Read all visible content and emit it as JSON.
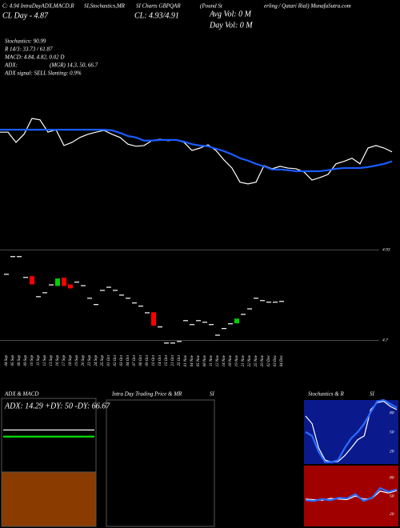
{
  "header": {
    "line1": [
      "C: 4.94 IntraDayADX,MACD,R",
      "SI,Stochastics,MR",
      "SI Charts GBPQAR",
      "(Pound St",
      "erling / Qatari Rial) MunafaSutra.com"
    ],
    "close_day": "CL Day - 4.87",
    "close": "CL: 4.93/4.91",
    "avg_vol": "Avg Vol: 0  M",
    "day_vol": "Day Vol: 0  M",
    "stats": [
      "Stochastics: 90.99",
      "R 14/3: 33.73 / 61.87",
      "MACD: 4.84, 4.82, 0.02  D",
      "ADX:",
      "(MGR) 14.3, 50, 66.7",
      "ADX  signal: SELL Slanting: 0.9%"
    ]
  },
  "intraday": {
    "title": "Intra Day Trading Price & MR",
    "subtitle": "SI"
  },
  "chart_data": [
    {
      "type": "line",
      "ylim": [
        4.7,
        4.95
      ],
      "series": [
        {
          "color": "#ffffff",
          "values": [
            4.87,
            4.87,
            4.841,
            4.864,
            4.909,
            4.905,
            4.87,
            4.877,
            4.832,
            4.841,
            4.855,
            4.864,
            4.87,
            4.875,
            4.864,
            4.855,
            4.836,
            4.83,
            4.832,
            4.846,
            4.85,
            4.846,
            4.848,
            4.841,
            4.818,
            4.825,
            4.834,
            4.818,
            4.791,
            4.768,
            4.728,
            4.723,
            4.728,
            4.775,
            4.766,
            4.773,
            4.768,
            4.766,
            4.757,
            4.734,
            4.741,
            4.75,
            4.78,
            4.787,
            4.796,
            4.78,
            4.825,
            4.832,
            4.825,
            4.814
          ]
        },
        {
          "color": "#1a5cff",
          "values": [
            4.877,
            4.877,
            4.877,
            4.877,
            4.877,
            4.877,
            4.877,
            4.877,
            4.877,
            4.877,
            4.877,
            4.877,
            4.877,
            4.877,
            4.875,
            4.868,
            4.859,
            4.855,
            4.846,
            4.846,
            4.848,
            4.848,
            4.848,
            4.843,
            4.836,
            4.832,
            4.83,
            4.823,
            4.816,
            4.807,
            4.796,
            4.789,
            4.78,
            4.773,
            4.764,
            4.764,
            4.762,
            4.759,
            4.759,
            4.759,
            4.759,
            4.762,
            4.766,
            4.768,
            4.768,
            4.768,
            4.771,
            4.775,
            4.78,
            4.787
          ]
        }
      ]
    },
    {
      "type": "candlestick",
      "ylim": [
        4.67,
        4.955
      ],
      "yticks": [
        4.93,
        4.7
      ],
      "grid": true,
      "up_color": "#00d000",
      "down_color": "#ff0000",
      "flat_color": "#ffffff",
      "categories": [
        "04 Sep",
        "05 Sep",
        "06 Sep",
        "09 Sep",
        "10 Sep",
        "11 Sep",
        "12 Sep",
        "13 Sep",
        "16 Sep",
        "17 Sep",
        "18 Sep",
        "19 Sep",
        "20 Sep",
        "23 Sep",
        "24 Sep",
        "25 Sep",
        "01 Oct",
        "02 Oct",
        "03 Oct",
        "04 Oct",
        "07 Oct",
        "08 Oct",
        "09 Oct",
        "10 Oct",
        "14 Oct",
        "15 Oct",
        "21 Oct",
        "25 Oct",
        "01 Nov",
        "04 Nov",
        "05 Nov",
        "08 Nov",
        "11 Nov",
        "12 Nov",
        "14 Nov",
        "18 Nov",
        "19 Nov",
        "21 Nov",
        "22 Nov",
        "25 Nov",
        "29 Nov",
        "02 Dec",
        "03 Dec",
        "04 Dec"
      ],
      "open": [
        4.869,
        4.914,
        4.914,
        4.861,
        4.863,
        4.812,
        4.822,
        4.842,
        4.838,
        4.859,
        4.842,
        4.849,
        4.84,
        4.808,
        4.792,
        4.828,
        4.836,
        4.828,
        4.816,
        4.808,
        4.796,
        4.788,
        4.771,
        4.771,
        4.735,
        4.694,
        4.694,
        4.698,
        4.751,
        4.741,
        4.751,
        4.747,
        4.741,
        4.714,
        4.731,
        4.743,
        4.743,
        4.767,
        4.781,
        4.808,
        4.802,
        4.798,
        4.798,
        4.8
      ],
      "close": [
        4.869,
        4.914,
        4.914,
        4.861,
        4.842,
        4.812,
        4.822,
        4.842,
        4.857,
        4.838,
        4.832,
        4.849,
        4.84,
        4.808,
        4.792,
        4.828,
        4.836,
        4.828,
        4.816,
        4.808,
        4.796,
        4.788,
        4.771,
        4.737,
        4.735,
        4.694,
        4.694,
        4.698,
        4.751,
        4.741,
        4.751,
        4.747,
        4.741,
        4.714,
        4.731,
        4.743,
        4.755,
        4.767,
        4.781,
        4.808,
        4.802,
        4.798,
        4.798,
        4.8
      ]
    },
    {
      "type": "line",
      "title": "ADX & MACD",
      "subtitle": "ADX: 14.29 +DY: 50 -DY: 66.67",
      "ylim": [
        0,
        100
      ],
      "series": [
        {
          "color": "#ffffff",
          "values": [
            64,
            64,
            64,
            64,
            64,
            64,
            64,
            64
          ]
        },
        {
          "color": "#00e000",
          "values": [
            54,
            54,
            54,
            54,
            54,
            54,
            54,
            54
          ]
        }
      ]
    },
    {
      "type": "line",
      "title": "Stochastics & R",
      "subtitle": "SI",
      "ylim": [
        0,
        100
      ],
      "yticks": [
        80,
        50,
        20
      ],
      "series": [
        {
          "color": "#ffffff",
          "values": [
            75,
            63,
            25,
            6,
            3,
            4,
            13,
            25,
            38,
            44,
            85,
            96,
            98,
            90,
            85
          ]
        },
        {
          "color": "#2b6bff",
          "values": [
            50,
            44,
            19,
            3,
            3,
            6,
            25,
            40,
            50,
            63,
            81,
            98,
            100,
            94,
            88
          ]
        }
      ]
    },
    {
      "type": "line",
      "ylim": [
        0,
        100
      ],
      "yticks": [
        80,
        50,
        20
      ],
      "series": [
        {
          "color": "#ffffff",
          "values": [
            45,
            44,
            43,
            46,
            45,
            44,
            50,
            45,
            46,
            58,
            55,
            59
          ]
        },
        {
          "color": "#2b6bff",
          "values": [
            43,
            42,
            45,
            43,
            47,
            46,
            53,
            42,
            47,
            63,
            57,
            61
          ]
        }
      ]
    }
  ]
}
